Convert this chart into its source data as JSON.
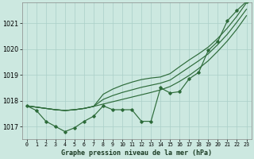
{
  "title": "Graphe pression niveau de la mer (hPa)",
  "background_color": "#cce8e0",
  "grid_color": "#aacfc8",
  "line_color": "#2d6b3a",
  "x_labels": [
    "0",
    "1",
    "2",
    "3",
    "4",
    "5",
    "6",
    "7",
    "8",
    "9",
    "10",
    "11",
    "12",
    "13",
    "14",
    "15",
    "16",
    "17",
    "18",
    "19",
    "20",
    "21",
    "22",
    "23"
  ],
  "ylim": [
    1016.5,
    1021.8
  ],
  "yticks": [
    1017,
    1018,
    1019,
    1020,
    1021
  ],
  "band1": [
    1017.8,
    1017.75,
    1017.7,
    1017.65,
    1017.62,
    1017.65,
    1017.7,
    1017.78,
    1017.87,
    1017.96,
    1018.05,
    1018.14,
    1018.23,
    1018.32,
    1018.42,
    1018.55,
    1018.75,
    1018.98,
    1019.25,
    1019.55,
    1019.92,
    1020.32,
    1020.78,
    1021.3
  ],
  "band2": [
    1017.8,
    1017.75,
    1017.7,
    1017.65,
    1017.62,
    1017.65,
    1017.7,
    1017.78,
    1018.05,
    1018.2,
    1018.32,
    1018.42,
    1018.52,
    1018.6,
    1018.68,
    1018.8,
    1019.05,
    1019.3,
    1019.55,
    1019.82,
    1020.18,
    1020.58,
    1021.05,
    1021.55
  ],
  "band3": [
    1017.8,
    1017.75,
    1017.7,
    1017.65,
    1017.62,
    1017.65,
    1017.7,
    1017.78,
    1018.25,
    1018.45,
    1018.6,
    1018.72,
    1018.82,
    1018.88,
    1018.92,
    1019.05,
    1019.32,
    1019.58,
    1019.82,
    1020.08,
    1020.42,
    1020.82,
    1021.28,
    1021.8
  ],
  "main": [
    1017.8,
    1017.62,
    1017.2,
    1017.0,
    1016.8,
    1016.95,
    1017.2,
    1017.4,
    1017.8,
    1017.65,
    1017.65,
    1017.65,
    1017.2,
    1017.2,
    1018.5,
    1018.3,
    1018.35,
    1018.85,
    1019.1,
    1019.95,
    1020.3,
    1021.1,
    1021.5,
    1021.85
  ],
  "figsize": [
    3.2,
    2.0
  ],
  "dpi": 100
}
